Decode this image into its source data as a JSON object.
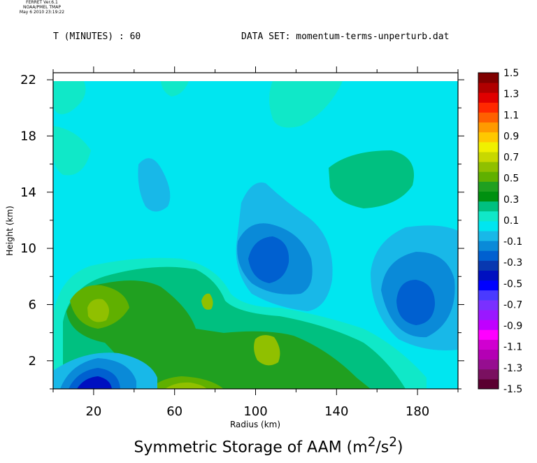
{
  "header": {
    "meta_lines": [
      "FERRET Ver.6.1",
      "NOAA/PMEL TMAP",
      "May  6 2010 23:19:22"
    ],
    "time_label": "T (MINUTES) : 60",
    "dataset_label": "DATA SET: momentum-terms-unperturb.dat"
  },
  "chart_data": {
    "type": "heatmap",
    "subtype": "filled-contour",
    "title": "Symmetric Storage of AAM (m²/s²)",
    "xlabel": "Radius (km)",
    "ylabel": "Height (km)",
    "xlim": [
      0,
      200
    ],
    "ylim": [
      0,
      22.5
    ],
    "x_ticks": [
      20,
      60,
      100,
      140,
      180
    ],
    "y_ticks": [
      2,
      6,
      10,
      14,
      18,
      22
    ],
    "colorbar": {
      "levels": [
        -1.5,
        -1.4,
        -1.3,
        -1.2,
        -1.1,
        -1.0,
        -0.9,
        -0.8,
        -0.7,
        -0.6,
        -0.5,
        -0.4,
        -0.3,
        -0.2,
        -0.1,
        0.0,
        0.1,
        0.2,
        0.3,
        0.4,
        0.5,
        0.6,
        0.7,
        0.8,
        0.9,
        1.0,
        1.1,
        1.2,
        1.3,
        1.4,
        1.5
      ],
      "labels": [
        "1.5",
        "1.3",
        "1.1",
        "0.9",
        "0.7",
        "0.5",
        "0.3",
        "0.1",
        "-0.1",
        "-0.3",
        "-0.5",
        "-0.7",
        "-0.9",
        "-1.1",
        "-1.3",
        "-1.5"
      ],
      "colors": [
        "#5a0030",
        "#7a1060",
        "#960e90",
        "#b400b4",
        "#d000d0",
        "#ff00ff",
        "#c000ff",
        "#9a18ff",
        "#7a30ff",
        "#4a3aff",
        "#0000ff",
        "#0010c0",
        "#0838b0",
        "#0060d0",
        "#0a8ad8",
        "#18b8e8",
        "#00e6f0",
        "#10e8c8",
        "#00c080",
        "#009010",
        "#20a020",
        "#60b000",
        "#90c000",
        "#c8d800",
        "#f0f000",
        "#ffc800",
        "#ff9a00",
        "#ff6000",
        "#ff2800",
        "#e00000",
        "#b00000",
        "#800000"
      ],
      "colors_note": "bottom (-1.5) to top (1.5)"
    },
    "regions": [
      {
        "value_band": "0.0 to 0.1",
        "desc": "background field"
      },
      {
        "value_band": "0.1 to 0.2",
        "desc": "upper-left plume near r=0-30, z=17-22"
      },
      {
        "value_band": "0.1 to 0.2",
        "desc": "upper-right lobe near r=130-170, z=12-17"
      },
      {
        "value_band": "0.2 to 0.3",
        "desc": "core near r=140-160, z=14"
      },
      {
        "value_band": "-0.1 to 0.0",
        "desc": "small lobe r=45-55, z=13-15"
      },
      {
        "value_band": "-0.2 to -0.1",
        "desc": "mid cell r=90-130, z=7-14"
      },
      {
        "value_band": "-0.3 to -0.2",
        "desc": "mid cell r=90-120, z=8-11"
      },
      {
        "value_band": "-0.4 to -0.3",
        "desc": "mid core r=105, z=9"
      },
      {
        "value_band": "-0.2 to -0.1",
        "desc": "right cell r=155-200, z=3-11"
      },
      {
        "value_band": "-0.3 to -0.2",
        "desc": "right cell r=165-195, z=4-9"
      },
      {
        "value_band": "-0.4 to -0.3",
        "desc": "right core r=180, z=6"
      },
      {
        "value_band": "0.1 to 0.5",
        "desc": "low-level positive band r=10-140, z=0-9"
      },
      {
        "value_band": "-0.5 to -0.1",
        "desc": "bottom-left negative cell r=5-45, z=0-3"
      }
    ]
  }
}
